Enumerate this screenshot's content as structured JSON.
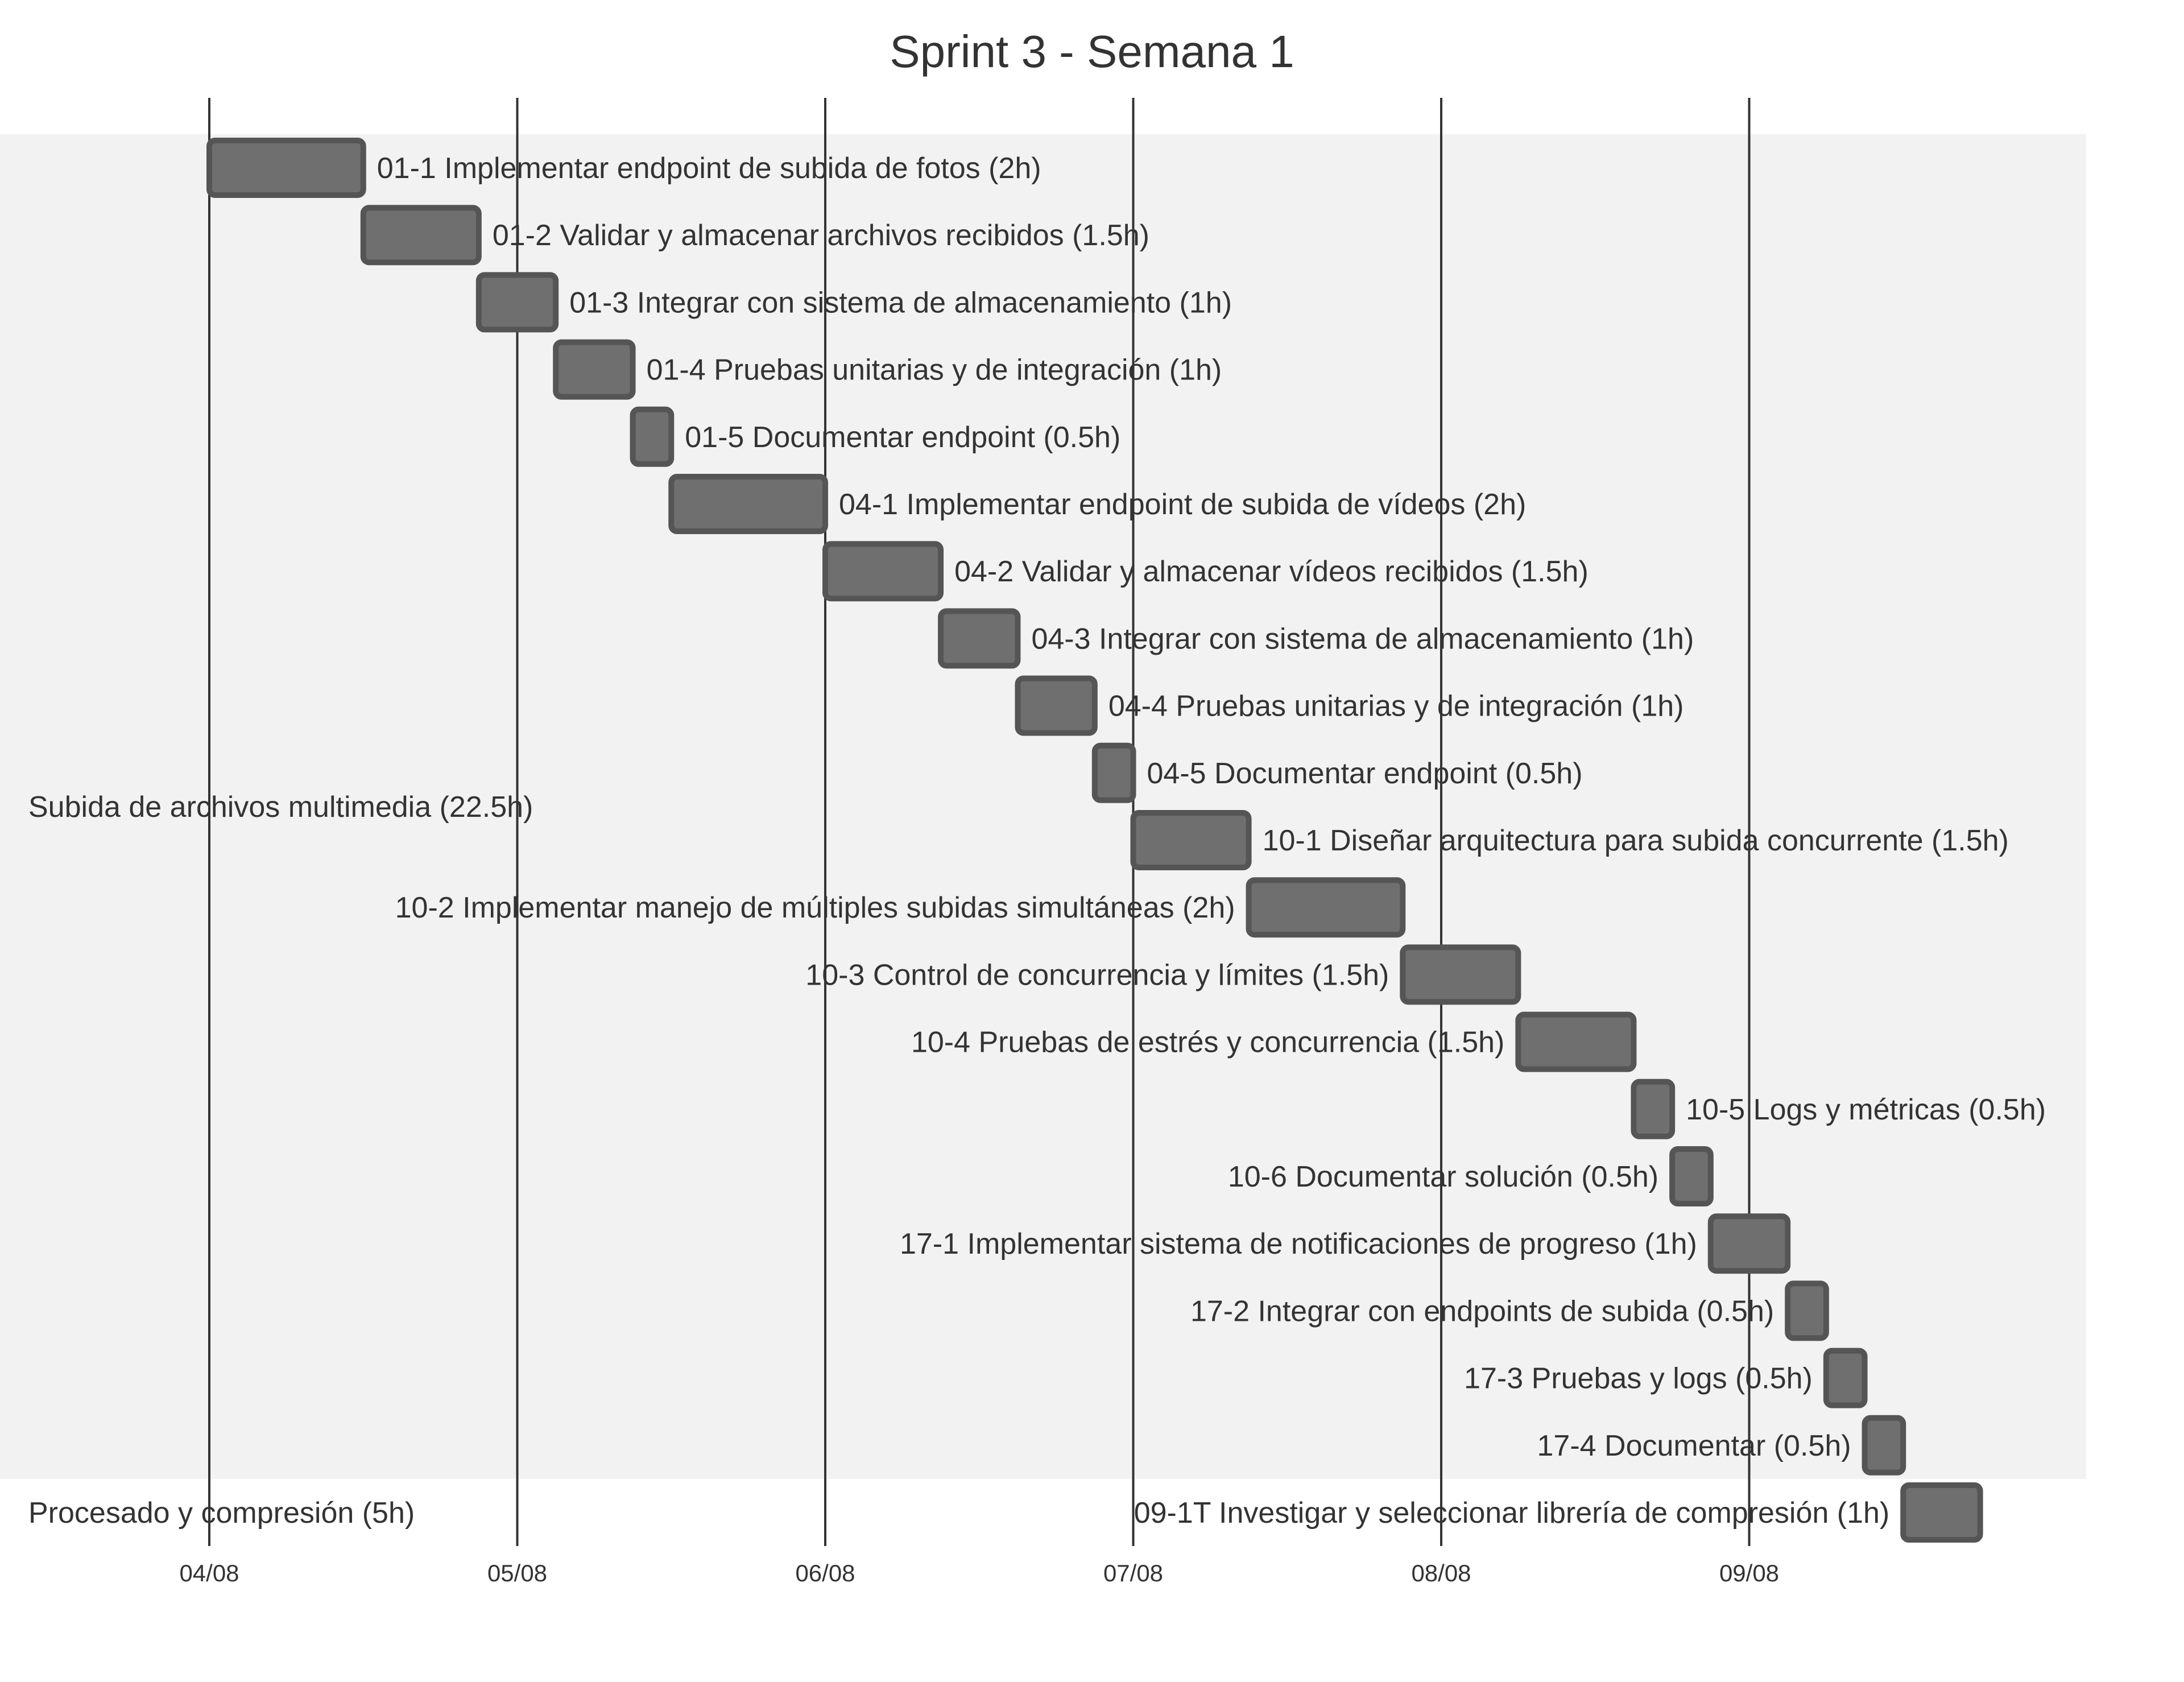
{
  "chart_data": {
    "type": "gantt",
    "title": "Sprint 3 - Semana 1",
    "x_start": "2025-08-04",
    "x_ticks": [
      "04/08",
      "05/08",
      "06/08",
      "07/08",
      "08/08",
      "09/08"
    ],
    "colors": {
      "bar_fill": "#6f6f6f",
      "bar_stroke": "#555555",
      "section_band": "#f2f2f2",
      "grid": "#333333",
      "text": "#333333"
    },
    "sections": [
      {
        "name": "Subida de archivos multimedia (22.5h)",
        "shaded": true,
        "tasks": [
          {
            "label": "01-1 Implementar endpoint de subida de fotos (2h)",
            "start": "2025-08-04 00:00",
            "end": "2025-08-04 12:00"
          },
          {
            "label": "01-2 Validar y almacenar archivos recibidos (1.5h)",
            "start": "2025-08-04 12:00",
            "end": "2025-08-04 21:00"
          },
          {
            "label": "01-3 Integrar con sistema de almacenamiento (1h)",
            "start": "2025-08-04 21:00",
            "end": "2025-08-05 03:00"
          },
          {
            "label": "01-4 Pruebas unitarias y de integración (1h)",
            "start": "2025-08-05 03:00",
            "end": "2025-08-05 09:00"
          },
          {
            "label": "01-5 Documentar endpoint (0.5h)",
            "start": "2025-08-05 09:00",
            "end": "2025-08-05 12:00"
          },
          {
            "label": "04-1 Implementar endpoint de subida de vídeos (2h)",
            "start": "2025-08-05 12:00",
            "end": "2025-08-06 00:00"
          },
          {
            "label": "04-2 Validar y almacenar vídeos recibidos (1.5h)",
            "start": "2025-08-06 00:00",
            "end": "2025-08-06 09:00"
          },
          {
            "label": "04-3 Integrar con sistema de almacenamiento (1h)",
            "start": "2025-08-06 09:00",
            "end": "2025-08-06 15:00"
          },
          {
            "label": "04-4 Pruebas unitarias y de integración (1h)",
            "start": "2025-08-06 15:00",
            "end": "2025-08-06 21:00"
          },
          {
            "label": "04-5 Documentar endpoint (0.5h)",
            "start": "2025-08-06 21:00",
            "end": "2025-08-07 00:00"
          },
          {
            "label": "10-1 Diseñar arquitectura para subida concurrente (1.5h)",
            "start": "2025-08-07 00:00",
            "end": "2025-08-07 09:00"
          },
          {
            "label": "10-2 Implementar manejo de múltiples subidas simultáneas (2h)",
            "start": "2025-08-07 09:00",
            "end": "2025-08-07 21:00"
          },
          {
            "label": "10-3 Control de concurrencia y límites (1.5h)",
            "start": "2025-08-07 21:00",
            "end": "2025-08-08 06:00"
          },
          {
            "label": "10-4 Pruebas de estrés y concurrencia (1.5h)",
            "start": "2025-08-08 06:00",
            "end": "2025-08-08 15:00"
          },
          {
            "label": "10-5 Logs y métricas (0.5h)",
            "start": "2025-08-08 15:00",
            "end": "2025-08-08 18:00"
          },
          {
            "label": "10-6 Documentar solución (0.5h)",
            "start": "2025-08-08 18:00",
            "end": "2025-08-08 21:00"
          },
          {
            "label": "17-1 Implementar sistema de notificaciones de progreso (1h)",
            "start": "2025-08-08 21:00",
            "end": "2025-08-09 03:00"
          },
          {
            "label": "17-2 Integrar con endpoints de subida (0.5h)",
            "start": "2025-08-09 03:00",
            "end": "2025-08-09 06:00"
          },
          {
            "label": "17-3 Pruebas y logs (0.5h)",
            "start": "2025-08-09 06:00",
            "end": "2025-08-09 09:00"
          },
          {
            "label": "17-4 Documentar (0.5h)",
            "start": "2025-08-09 09:00",
            "end": "2025-08-09 12:00"
          }
        ]
      },
      {
        "name": "Procesado y compresión (5h)",
        "shaded": false,
        "tasks": [
          {
            "label": "09-1T Investigar y seleccionar librería de compresión (1h)",
            "start": "2025-08-09 12:00",
            "end": "2025-08-09 18:00"
          }
        ]
      }
    ]
  }
}
